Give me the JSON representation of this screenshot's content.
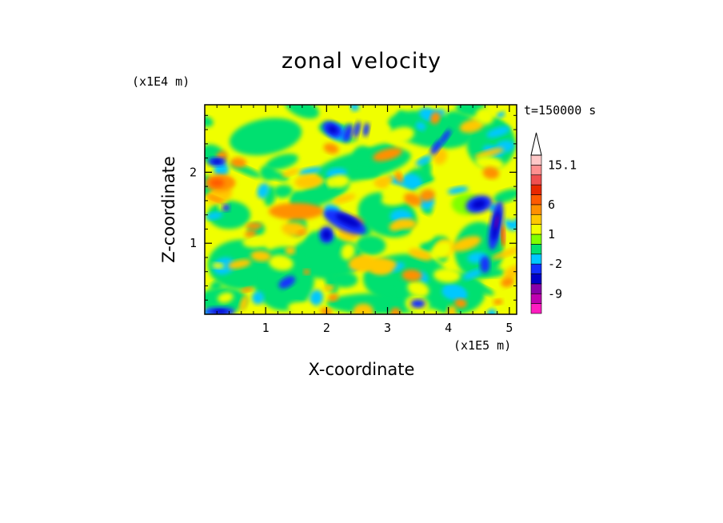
{
  "chart_data": {
    "type": "heatmap",
    "title": "zonal velocity",
    "xlabel": "X-coordinate",
    "ylabel": "Z-coordinate",
    "x_scale_label": "(x1E5 m)",
    "y_scale_label": "(x1E4 m)",
    "time_label": "t=150000 s",
    "xlim": [
      0,
      5.12
    ],
    "ylim": [
      0,
      2.95
    ],
    "x_ticks": [
      "1",
      "2",
      "3",
      "4",
      "5"
    ],
    "y_ticks": [
      "1",
      "2"
    ],
    "colorbar": {
      "tick_labels": [
        "15.1",
        "6",
        "1",
        "-2",
        "-9"
      ],
      "levels_low_to_high": [
        -14,
        -11,
        -9,
        -6,
        -4,
        -2,
        -1,
        0,
        1,
        2,
        4,
        6,
        9,
        11,
        13,
        15.1
      ],
      "colors_low_to_high": [
        "#ff1cc0",
        "#c000b0",
        "#8800aa",
        "#0000c8",
        "#1230ff",
        "#00c8ff",
        "#00e070",
        "#80ff00",
        "#f0ff00",
        "#ffc800",
        "#ff9000",
        "#ff5a00",
        "#e82800",
        "#f05050",
        "#ff9090",
        "#ffc8c8"
      ],
      "extend": "max"
    },
    "features": [
      {
        "region": "upper-left",
        "x": 0.25,
        "z": 1.85,
        "value": 6
      },
      {
        "region": "upper-middle",
        "x": 2.1,
        "z": 2.6,
        "value": -9
      },
      {
        "region": "mid-left",
        "x": 2.3,
        "z": 1.3,
        "value": -9
      },
      {
        "region": "right",
        "x": 4.75,
        "z": 1.25,
        "value": -9
      },
      {
        "region": "right-top",
        "x": 4.6,
        "z": 1.55,
        "value": -9
      }
    ]
  }
}
